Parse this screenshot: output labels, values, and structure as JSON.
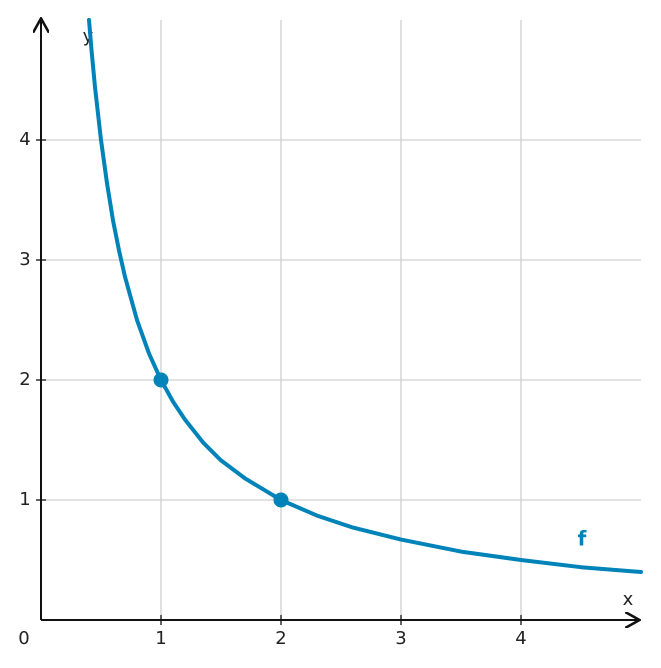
{
  "chart_data": {
    "type": "line",
    "x": [
      0.4,
      0.42,
      0.45,
      0.5,
      0.55,
      0.6,
      0.65,
      0.7,
      0.8,
      0.9,
      1,
      1.1,
      1.2,
      1.35,
      1.5,
      1.7,
      2,
      2.3,
      2.6,
      3,
      3.5,
      4,
      4.5,
      5
    ],
    "series": [
      {
        "name": "f",
        "color": "#0083b8",
        "values": [
          5,
          4.76,
          4.44,
          4,
          3.64,
          3.33,
          3.08,
          2.86,
          2.5,
          2.22,
          2,
          1.82,
          1.67,
          1.48,
          1.33,
          1.18,
          1,
          0.87,
          0.77,
          0.67,
          0.57,
          0.5,
          0.44,
          0.4
        ]
      }
    ],
    "points": {
      "x": [
        1,
        2
      ],
      "values": [
        2,
        1
      ],
      "color": "#0083b8"
    },
    "xlim": [
      0,
      5
    ],
    "ylim": [
      0,
      5
    ],
    "xticks": [
      1,
      2,
      3,
      4
    ],
    "yticks": [
      1,
      2,
      3,
      4
    ],
    "origin_label": "0",
    "xlabel": "x",
    "ylabel": "y",
    "grid": true
  }
}
